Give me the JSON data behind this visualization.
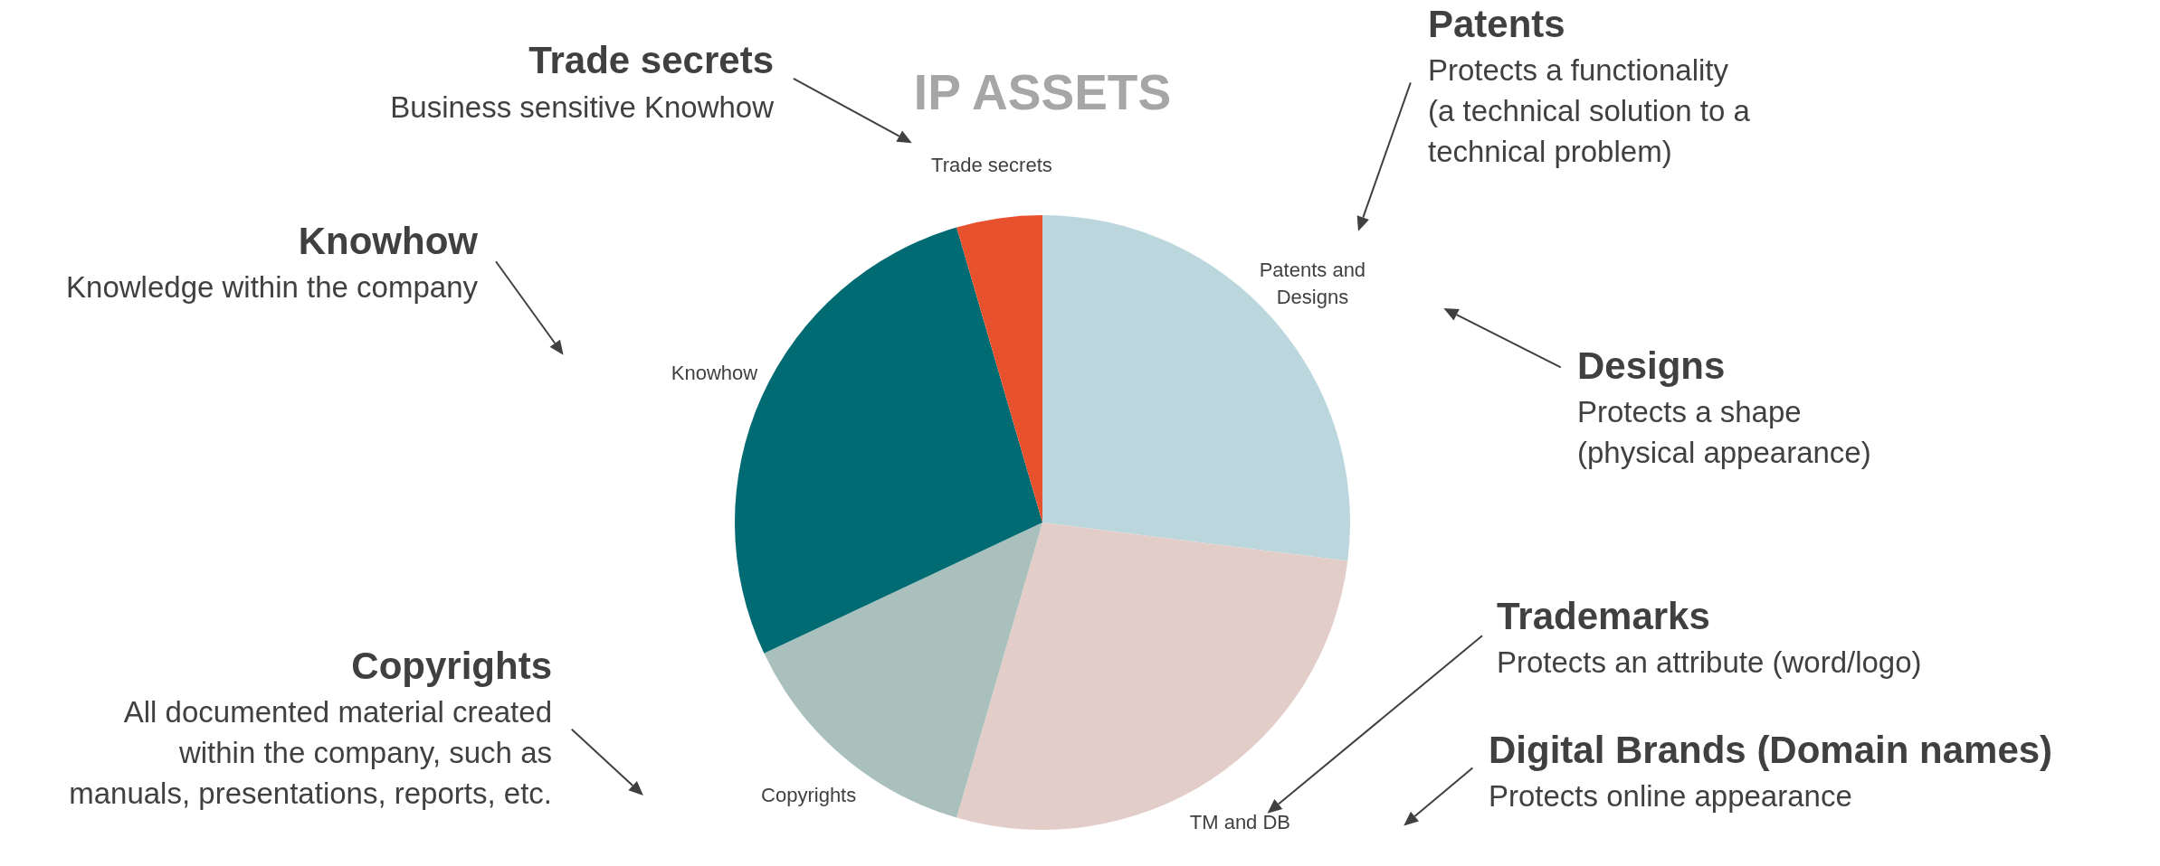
{
  "chart_data": {
    "type": "pie",
    "title": "IP ASSETS",
    "categories": [
      "Patents and\nDesigns",
      "TM and DB",
      "Copyrights",
      "Knowhow",
      "Trade secrets"
    ],
    "values": [
      27,
      27.5,
      13.5,
      27.5,
      4.5
    ],
    "colors": [
      "#bcd6de",
      "#e3cdc8",
      "#a9c0bc",
      "#006b73",
      "#e8512d"
    ],
    "annotations": [
      "Trade secrets",
      "Business sensitive Knowhow",
      "Knowhow",
      "Knowledge within the company",
      "Copyrights",
      "All documented material created\nwithin the company, such as\nmanuals, presentations, reports, etc.",
      "Patents",
      "Protects a functionality\n(a technical solution to a\ntechnical problem)",
      "Designs",
      "Protects a shape\n(physical appearance)",
      "Trademarks",
      "Protects an attribute (word/logo)",
      "Digital Brands (Domain names)",
      "Protects online appearance"
    ]
  }
}
